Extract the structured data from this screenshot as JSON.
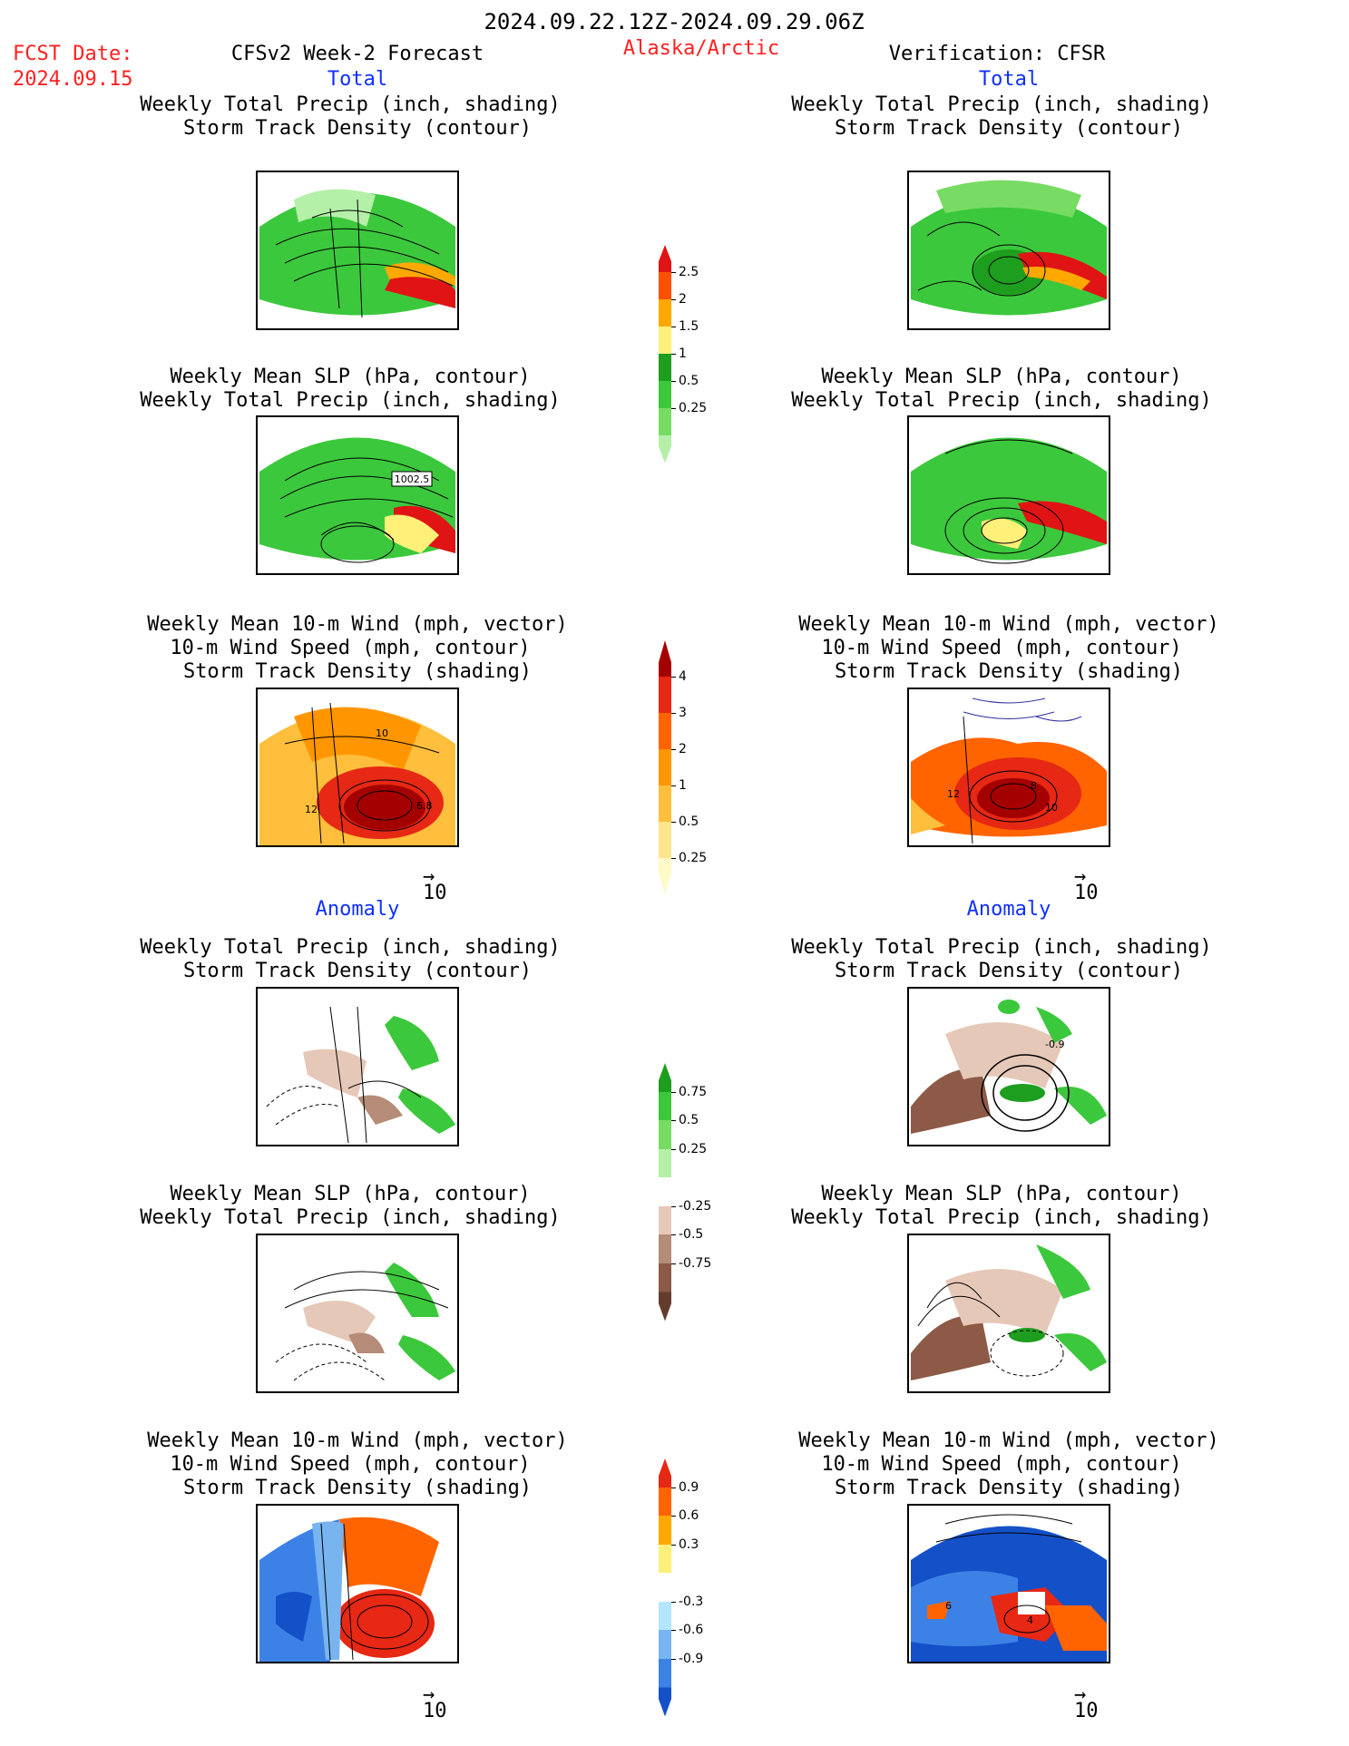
{
  "header": {
    "date_range": "2024.09.22.12Z-2024.09.29.06Z",
    "fcst_label": "FCST Date:",
    "fcst_date": "2024.09.15",
    "left_title": "CFSv2 Week-2 Forecast",
    "region": "Alaska/Arctic",
    "right_title": "Verification: CFSR"
  },
  "sections": {
    "total": "Total",
    "anomaly": "Anomaly"
  },
  "panel_titles": {
    "precip_storm": [
      "Weekly Total Precip (inch, shading)",
      "Storm Track Density (contour)"
    ],
    "slp_precip": [
      "Weekly Mean SLP (hPa, contour)",
      "Weekly Total Precip (inch, shading)"
    ],
    "wind": [
      "Weekly Mean 10-m Wind (mph, vector)",
      "10-m Wind Speed (mph, contour)",
      "Storm Track Density (shading)"
    ]
  },
  "panel_labels": {
    "slp_fc": "1002.5",
    "wind_fc": [
      "10",
      "12",
      "6.8"
    ],
    "wind_ver": [
      "12",
      "8",
      "10"
    ],
    "anom_ver": "-0.9",
    "wind_anom_ver": [
      "6",
      "4"
    ]
  },
  "vector_ref": "10",
  "colors": {
    "title_red": "#ff2020",
    "section_blue": "#1030ff"
  },
  "chart_data": {
    "type": "heatmap",
    "colorbars": [
      {
        "name": "precip_total",
        "ticks": [
          "0.25",
          "0.5",
          "1",
          "1.5",
          "2",
          "2.5"
        ],
        "colors": [
          "#b4f0a8",
          "#78dc64",
          "#3cc83c",
          "#1e9e1e",
          "#fff07a",
          "#ffa800",
          "#ff5000",
          "#e01414"
        ]
      },
      {
        "name": "storm_density_total",
        "ticks": [
          "0.25",
          "0.5",
          "1",
          "2",
          "3",
          "4"
        ],
        "colors": [
          "#fffac8",
          "#ffe68c",
          "#ffbe3c",
          "#ff9600",
          "#ff6400",
          "#e62814",
          "#a50000"
        ]
      },
      {
        "name": "precip_anom",
        "ticks": [
          "0.75",
          "0.5",
          "0.25",
          "-0.25",
          "-0.5",
          "-0.75"
        ],
        "colors": [
          "#1e9e1e",
          "#3cc83c",
          "#78dc64",
          "#b4f0a8",
          "#ffffff",
          "#e6c8b8",
          "#b48c78",
          "#8c5a46",
          "#643c2d"
        ]
      },
      {
        "name": "storm_density_anom",
        "ticks": [
          "0.9",
          "0.6",
          "0.3",
          "-0.3",
          "-0.6",
          "-0.9"
        ],
        "colors": [
          "#e62814",
          "#ff6400",
          "#ffa800",
          "#fff07a",
          "#ffffff",
          "#b4e6ff",
          "#78b4f0",
          "#3c82e6",
          "#1450c8"
        ]
      }
    ]
  }
}
